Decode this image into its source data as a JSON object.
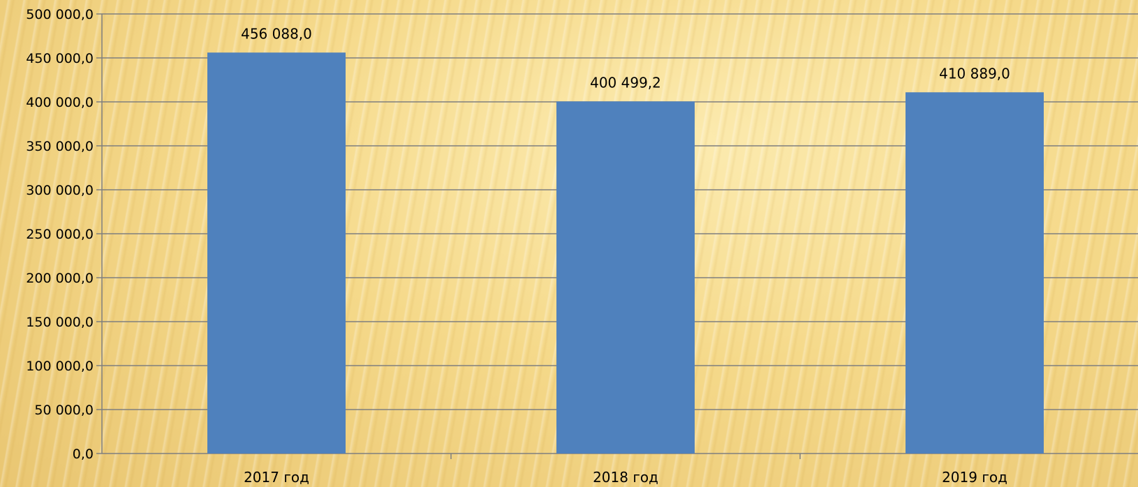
{
  "chart_data": {
    "type": "bar",
    "categories": [
      "2017 год",
      "2018 год",
      "2019 год"
    ],
    "values": [
      456088.0,
      400499.2,
      410889.0
    ],
    "data_labels": [
      "456 088,0",
      "400 499,2",
      "410 889,0"
    ],
    "ylim": [
      0,
      500000
    ],
    "yticks": [
      0,
      50000,
      100000,
      150000,
      200000,
      250000,
      300000,
      350000,
      400000,
      450000,
      500000
    ],
    "ytick_labels": [
      "0,0",
      "50 000,0",
      "100 000,0",
      "150 000,0",
      "200 000,0",
      "250 000,0",
      "300 000,0",
      "350 000,0",
      "400 000,0",
      "450 000,0",
      "500 000,0"
    ],
    "title": "",
    "xlabel": "",
    "ylabel": "",
    "grid": true,
    "legend": "none",
    "bar_color": "#4f81bd",
    "gridline_color": "#7f7f7f"
  }
}
